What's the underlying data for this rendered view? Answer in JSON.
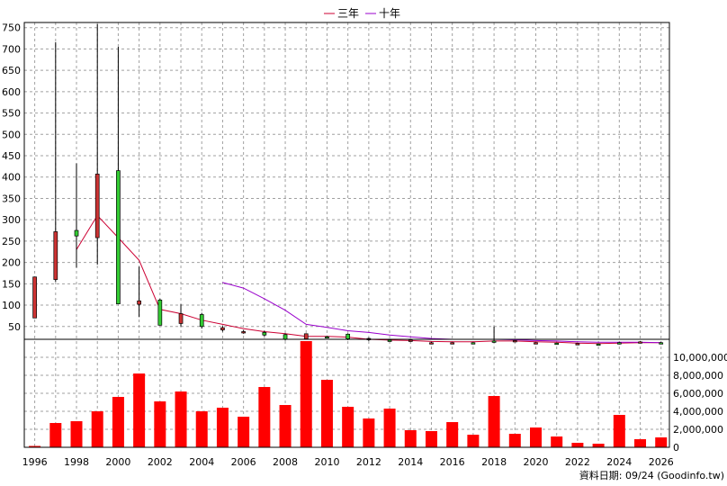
{
  "chart_data": {
    "type": "candlestick",
    "legend": {
      "placement": "top-center",
      "items": [
        {
          "label": "三年",
          "color": "#cc0033"
        },
        {
          "label": "十年",
          "color": "#9900cc"
        }
      ]
    },
    "credit": "資料日期: 09/24  (Goodinfo.tw)",
    "grid": true,
    "colors": {
      "up": "#33cc33",
      "down": "#cc3333",
      "volume": "#ff0000",
      "wick": "#000000"
    },
    "x_axis": {
      "range": [
        1995.5,
        2026.4
      ],
      "ticks": [
        1996,
        1998,
        2000,
        2002,
        2004,
        2006,
        2008,
        2010,
        2012,
        2014,
        2016,
        2018,
        2020,
        2022,
        2024,
        2026
      ]
    },
    "price_axis": {
      "range": [
        20,
        762
      ],
      "ticks": [
        50,
        100,
        150,
        200,
        250,
        300,
        350,
        400,
        450,
        500,
        550,
        600,
        650,
        700,
        750
      ]
    },
    "volume_axis": {
      "range": [
        0,
        11800000
      ],
      "ticks": [
        0,
        2000000,
        4000000,
        6000000,
        8000000,
        10000000
      ],
      "tick_labels": [
        "0",
        "2,000,000",
        "4,000,000",
        "6,000,000",
        "8,000,000",
        "10,000,000"
      ]
    },
    "candles": [
      {
        "x": 1996,
        "open": 166,
        "high": 166,
        "low": 70,
        "close": 70
      },
      {
        "x": 1997,
        "open": 272,
        "high": 716,
        "low": 155,
        "close": 160
      },
      {
        "x": 1998,
        "open": 262,
        "high": 432,
        "low": 188,
        "close": 275
      },
      {
        "x": 1999,
        "open": 407,
        "high": 758,
        "low": 195,
        "close": 258
      },
      {
        "x": 2000,
        "open": 103,
        "high": 705,
        "low": 103,
        "close": 415
      },
      {
        "x": 2001,
        "open": 110,
        "high": 190,
        "low": 72,
        "close": 102
      },
      {
        "x": 2002,
        "open": 53,
        "high": 115,
        "low": 53,
        "close": 112
      },
      {
        "x": 2003,
        "open": 80,
        "high": 102,
        "low": 50,
        "close": 57
      },
      {
        "x": 2004,
        "open": 50,
        "high": 82,
        "low": 45,
        "close": 78
      },
      {
        "x": 2005,
        "open": 47,
        "high": 51,
        "low": 38,
        "close": 42
      },
      {
        "x": 2006,
        "open": 38,
        "high": 42,
        "low": 33,
        "close": 36
      },
      {
        "x": 2007,
        "open": 30,
        "high": 40,
        "low": 27,
        "close": 36
      },
      {
        "x": 2008,
        "open": 20,
        "high": 34,
        "low": 17,
        "close": 31
      },
      {
        "x": 2009,
        "open": 33,
        "high": 34,
        "low": 20,
        "close": 21
      },
      {
        "x": 2010,
        "open": 24,
        "high": 28,
        "low": 23,
        "close": 26
      },
      {
        "x": 2011,
        "open": 21,
        "high": 34,
        "low": 18,
        "close": 32
      },
      {
        "x": 2012,
        "open": 22,
        "high": 24,
        "low": 16,
        "close": 20
      },
      {
        "x": 2013,
        "open": 17,
        "high": 21,
        "low": 15,
        "close": 18
      },
      {
        "x": 2014,
        "open": 18,
        "high": 20,
        "low": 15,
        "close": 17
      },
      {
        "x": 2015,
        "open": 12,
        "high": 14,
        "low": 10,
        "close": 11
      },
      {
        "x": 2016,
        "open": 12,
        "high": 13,
        "low": 10,
        "close": 11
      },
      {
        "x": 2017,
        "open": 12,
        "high": 13,
        "low": 11,
        "close": 12
      },
      {
        "x": 2018,
        "open": 14,
        "high": 50,
        "low": 12,
        "close": 16
      },
      {
        "x": 2019,
        "open": 17,
        "high": 18,
        "low": 13,
        "close": 15
      },
      {
        "x": 2020,
        "open": 12,
        "high": 13,
        "low": 9,
        "close": 11
      },
      {
        "x": 2021,
        "open": 11,
        "high": 12,
        "low": 10,
        "close": 11
      },
      {
        "x": 2022,
        "open": 10,
        "high": 11,
        "low": 8,
        "close": 9
      },
      {
        "x": 2023,
        "open": 9,
        "high": 10,
        "low": 8,
        "close": 9
      },
      {
        "x": 2024,
        "open": 10,
        "high": 14,
        "low": 8,
        "close": 12
      },
      {
        "x": 2025,
        "open": 14,
        "high": 16,
        "low": 12,
        "close": 13
      },
      {
        "x": 2026,
        "open": 12,
        "high": 14,
        "low": 11,
        "close": 12
      }
    ],
    "volumes": [
      {
        "x": 1996,
        "value": 150000
      },
      {
        "x": 1997,
        "value": 2700000
      },
      {
        "x": 1998,
        "value": 2900000
      },
      {
        "x": 1999,
        "value": 4000000
      },
      {
        "x": 2000,
        "value": 5600000
      },
      {
        "x": 2001,
        "value": 8200000
      },
      {
        "x": 2002,
        "value": 5100000
      },
      {
        "x": 2003,
        "value": 6200000
      },
      {
        "x": 2004,
        "value": 4000000
      },
      {
        "x": 2005,
        "value": 4400000
      },
      {
        "x": 2006,
        "value": 3400000
      },
      {
        "x": 2007,
        "value": 6700000
      },
      {
        "x": 2008,
        "value": 4700000
      },
      {
        "x": 2009,
        "value": 11800000
      },
      {
        "x": 2010,
        "value": 7500000
      },
      {
        "x": 2011,
        "value": 4500000
      },
      {
        "x": 2012,
        "value": 3200000
      },
      {
        "x": 2013,
        "value": 4300000
      },
      {
        "x": 2014,
        "value": 1900000
      },
      {
        "x": 2015,
        "value": 1800000
      },
      {
        "x": 2016,
        "value": 2800000
      },
      {
        "x": 2017,
        "value": 1400000
      },
      {
        "x": 2018,
        "value": 5700000
      },
      {
        "x": 2019,
        "value": 1500000
      },
      {
        "x": 2020,
        "value": 2200000
      },
      {
        "x": 2021,
        "value": 1200000
      },
      {
        "x": 2022,
        "value": 500000
      },
      {
        "x": 2023,
        "value": 400000
      },
      {
        "x": 2024,
        "value": 3600000
      },
      {
        "x": 2025,
        "value": 900000
      },
      {
        "x": 2026,
        "value": 1100000
      }
    ],
    "series": [
      {
        "name": "三年",
        "color": "#cc0033",
        "x": [
          1998,
          1999,
          2000,
          2001,
          2002,
          2003,
          2004,
          2005,
          2006,
          2007,
          2008,
          2009,
          2010,
          2011,
          2012,
          2013,
          2014,
          2015,
          2016,
          2017,
          2018,
          2019,
          2020,
          2021,
          2022,
          2023,
          2024,
          2025,
          2026
        ],
        "values": [
          230,
          310,
          258,
          205,
          90,
          80,
          65,
          55,
          45,
          38,
          33,
          27,
          27,
          25,
          20,
          18,
          17,
          15,
          14,
          14,
          16,
          16,
          14,
          13,
          11,
          10,
          11,
          12,
          12
        ]
      },
      {
        "name": "十年",
        "color": "#9900cc",
        "x": [
          2005,
          2006,
          2007,
          2008,
          2009,
          2010,
          2011,
          2012,
          2013,
          2014,
          2015,
          2016,
          2017,
          2018,
          2019,
          2020,
          2021,
          2022,
          2023,
          2024,
          2025,
          2026
        ],
        "values": [
          153,
          140,
          115,
          88,
          55,
          48,
          40,
          36,
          30,
          26,
          22,
          20,
          20,
          20,
          19,
          17,
          16,
          14,
          13,
          13,
          13,
          12
        ]
      }
    ]
  }
}
